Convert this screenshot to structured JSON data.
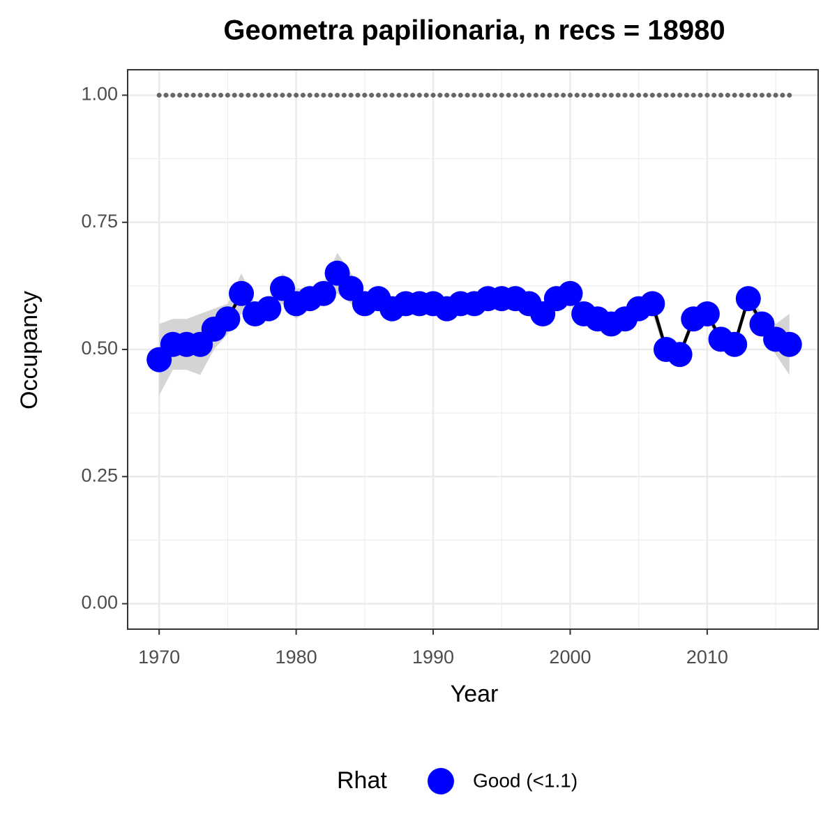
{
  "chart_data": {
    "type": "line",
    "title": "Geometra papilionaria, n recs = 18980",
    "x_label": "Year",
    "y_label": "Occupancy",
    "x": [
      1970,
      1971,
      1972,
      1973,
      1974,
      1975,
      1976,
      1977,
      1978,
      1979,
      1980,
      1981,
      1982,
      1983,
      1984,
      1985,
      1986,
      1987,
      1988,
      1989,
      1990,
      1991,
      1992,
      1993,
      1994,
      1995,
      1996,
      1997,
      1998,
      1999,
      2000,
      2001,
      2002,
      2003,
      2004,
      2005,
      2006,
      2007,
      2008,
      2009,
      2010,
      2011,
      2012,
      2013,
      2014,
      2015,
      2016
    ],
    "series": [
      {
        "name": "Good (<1.1)",
        "color": "#0000ff",
        "line_color": "#000000",
        "band_color": "#d4d4d4",
        "values": [
          0.48,
          0.51,
          0.51,
          0.51,
          0.54,
          0.56,
          0.61,
          0.57,
          0.58,
          0.62,
          0.59,
          0.6,
          0.61,
          0.65,
          0.62,
          0.59,
          0.6,
          0.58,
          0.59,
          0.59,
          0.59,
          0.58,
          0.59,
          0.59,
          0.6,
          0.6,
          0.6,
          0.59,
          0.57,
          0.6,
          0.61,
          0.57,
          0.56,
          0.55,
          0.56,
          0.58,
          0.59,
          0.5,
          0.49,
          0.56,
          0.57,
          0.52,
          0.51,
          0.6,
          0.55,
          0.52,
          0.51
        ],
        "lower": [
          0.41,
          0.46,
          0.46,
          0.45,
          0.5,
          0.53,
          0.57,
          0.55,
          0.56,
          0.59,
          0.56,
          0.58,
          0.59,
          0.61,
          0.59,
          0.57,
          0.58,
          0.56,
          0.57,
          0.57,
          0.57,
          0.56,
          0.57,
          0.57,
          0.58,
          0.58,
          0.58,
          0.57,
          0.55,
          0.58,
          0.59,
          0.55,
          0.54,
          0.53,
          0.54,
          0.56,
          0.57,
          0.49,
          0.48,
          0.55,
          0.56,
          0.51,
          0.5,
          0.59,
          0.53,
          0.49,
          0.45
        ],
        "upper": [
          0.55,
          0.56,
          0.56,
          0.57,
          0.58,
          0.59,
          0.65,
          0.59,
          0.6,
          0.65,
          0.62,
          0.62,
          0.63,
          0.69,
          0.65,
          0.61,
          0.62,
          0.6,
          0.61,
          0.61,
          0.61,
          0.6,
          0.61,
          0.61,
          0.62,
          0.62,
          0.62,
          0.61,
          0.59,
          0.62,
          0.63,
          0.59,
          0.58,
          0.57,
          0.58,
          0.6,
          0.61,
          0.51,
          0.5,
          0.57,
          0.58,
          0.53,
          0.52,
          0.61,
          0.57,
          0.55,
          0.57
        ]
      }
    ],
    "reference": 1,
    "reference_color": "#666666",
    "legend_title": "Rhat",
    "legend_position": "bottom",
    "xlim": [
      1967.7,
      2018.1
    ],
    "ylim": [
      -0.05,
      1.05
    ],
    "xticks": [
      1970,
      1980,
      1990,
      2000,
      2010
    ],
    "xminor": [
      1975,
      1985,
      1995,
      2005,
      2015
    ],
    "yticks": [
      {
        "value": 0,
        "label": "0.00"
      },
      {
        "value": 0.25,
        "label": "0.25"
      },
      {
        "value": 0.5,
        "label": "0.50"
      },
      {
        "value": 0.75,
        "label": "0.75"
      },
      {
        "value": 1,
        "label": "1.00"
      }
    ],
    "yminor": [
      0.125,
      0.375,
      0.625,
      0.875
    ],
    "grid": true
  }
}
